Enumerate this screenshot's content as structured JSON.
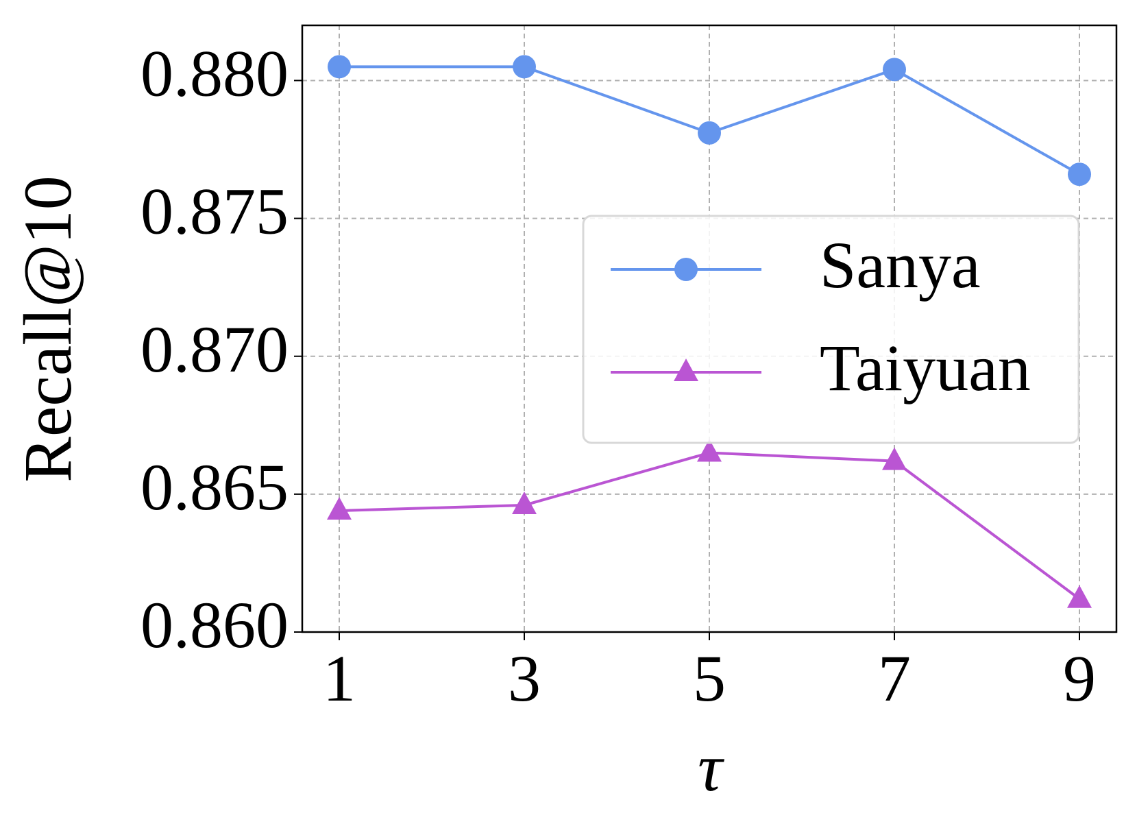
{
  "chart_data": {
    "type": "line",
    "x_label": "τ",
    "y_label": "Recall@10",
    "x": [
      1,
      3,
      5,
      7,
      9
    ],
    "series": [
      {
        "name": "Sanya",
        "color": "#6495ed",
        "marker": "circle",
        "values": [
          0.8805,
          0.8805,
          0.8781,
          0.8804,
          0.8766
        ]
      },
      {
        "name": "Taiyuan",
        "color": "#ba55d3",
        "marker": "triangle",
        "values": [
          0.8644,
          0.8646,
          0.8665,
          0.8662,
          0.8612
        ]
      }
    ],
    "xlim": [
      0.6,
      9.4
    ],
    "xticks": [
      1,
      3,
      5,
      7,
      9
    ],
    "ylim": [
      0.86,
      0.882
    ],
    "yticks": [
      {
        "value": 0.86,
        "label": "0.860"
      },
      {
        "value": 0.865,
        "label": "0.865"
      },
      {
        "value": 0.87,
        "label": "0.870"
      },
      {
        "value": 0.875,
        "label": "0.875"
      },
      {
        "value": 0.88,
        "label": "0.880"
      }
    ],
    "grid": true,
    "legend": "center right"
  }
}
